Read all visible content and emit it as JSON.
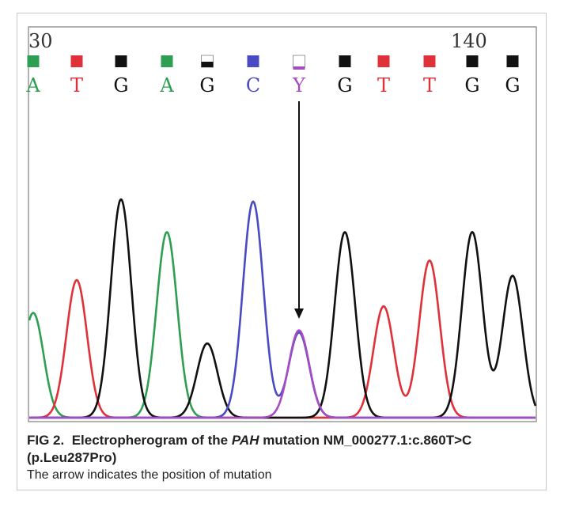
{
  "colors": {
    "A": "#2e9e52",
    "T": "#e0313b",
    "G": "#111111",
    "C": "#4a4ac2",
    "Y": "#a64cc2",
    "grid": "#aaaaaa",
    "box": "#999999"
  },
  "chart_data": {
    "type": "line",
    "title": "",
    "xlabel": "",
    "ylabel": "",
    "tick_labels": [
      "30",
      "140"
    ],
    "bases": [
      "A",
      "T",
      "G",
      "A",
      "G",
      "C",
      "Y",
      "G",
      "T",
      "T",
      "G",
      "G"
    ],
    "base_quality": [
      "full",
      "full",
      "full",
      "full",
      "partial",
      "full",
      "low",
      "full",
      "full",
      "full",
      "full",
      "full"
    ],
    "series": [
      {
        "channel": "A",
        "color": "#2e9e52",
        "peaks": [
          {
            "pos": 0,
            "height": 0.48
          },
          {
            "pos": 3,
            "height": 0.85
          }
        ]
      },
      {
        "channel": "T",
        "color": "#e0313b",
        "peaks": [
          {
            "pos": 1,
            "height": 0.63
          },
          {
            "pos": 8,
            "height": 0.51
          },
          {
            "pos": 9,
            "height": 0.72
          }
        ]
      },
      {
        "channel": "G",
        "color": "#111111",
        "peaks": [
          {
            "pos": 2,
            "height": 1.0
          },
          {
            "pos": 4,
            "height": 0.34
          },
          {
            "pos": 7,
            "height": 0.85
          },
          {
            "pos": 10,
            "height": 0.85
          },
          {
            "pos": 11,
            "height": 0.65
          }
        ]
      },
      {
        "channel": "C",
        "color": "#4a4ac2",
        "peaks": [
          {
            "pos": 5,
            "height": 0.99
          },
          {
            "pos": 6,
            "height": 0.39
          }
        ]
      },
      {
        "channel": "Y",
        "color": "#a64cc2",
        "peaks": [
          {
            "pos": 6,
            "height": 0.4
          }
        ]
      }
    ],
    "annotation": {
      "type": "arrow",
      "target_base_index": 6
    }
  },
  "caption": {
    "fig_label": "FIG 2.",
    "title_pre": "Electropherogram of the",
    "title_gene": "PAH",
    "title_post": "mutation NM_000277.1:c.860T>C (p.Leu287Pro)",
    "note": "The arrow indicates the position of mutation"
  }
}
